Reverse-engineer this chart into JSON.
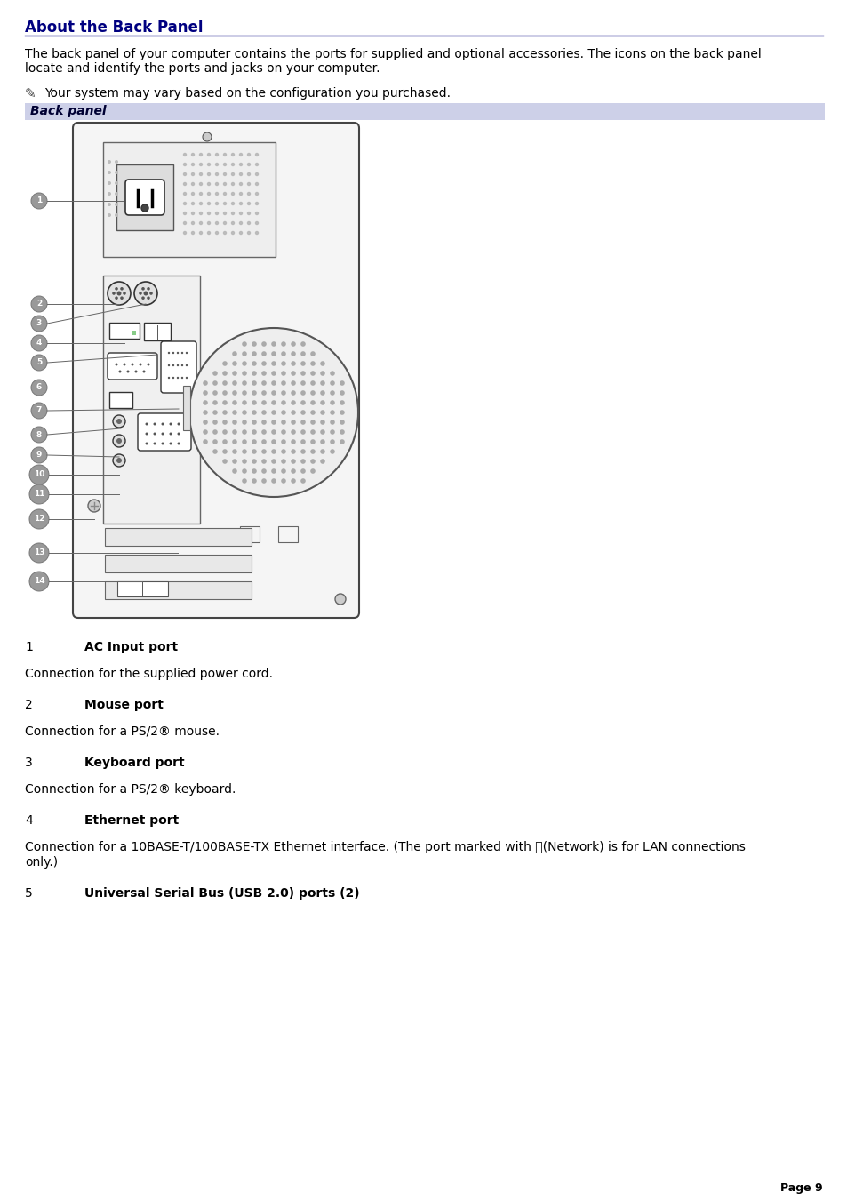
{
  "title": "About the Back Panel",
  "title_color": "#000080",
  "bg_color": "#ffffff",
  "intro_text_1": "The back panel of your computer contains the ports for supplied and optional accessories. The icons on the back panel",
  "intro_text_2": "locate and identify the ports and jacks on your computer.",
  "note_text": "Your system may vary based on the configuration you purchased.",
  "section_label": "Back panel",
  "section_bg": "#cdd0e8",
  "port_entries": [
    {
      "num": "1",
      "label": "AC Input port",
      "desc": "Connection for the supplied power cord."
    },
    {
      "num": "2",
      "label": "Mouse port",
      "desc": "Connection for a PS/2® mouse."
    },
    {
      "num": "3",
      "label": "Keyboard port",
      "desc": "Connection for a PS/2® keyboard."
    },
    {
      "num": "4",
      "label": "Ethernet port",
      "desc": "Connection for a 10BASE-T/100BASE-TX Ethernet interface. (The port marked with ⧉(Network) is for LAN connections\nonly.)"
    },
    {
      "num": "5",
      "label": "Universal Serial Bus (USB 2.0) ports (2)",
      "desc": ""
    }
  ],
  "page_num": "Page 9"
}
